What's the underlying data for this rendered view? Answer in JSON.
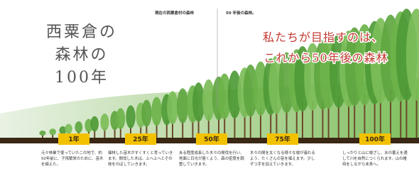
{
  "title_lines": [
    "西粟倉の",
    "森林の",
    "100年"
  ],
  "labels": {
    "current": "現在の西粟倉村の森林",
    "future": "50 年後の森林。"
  },
  "goal_lines": [
    "私たちが目指すのは、",
    "これから50年後の森林"
  ],
  "timeline": [
    {
      "year": "1年",
      "text": "元々林業で使っていたこの地で、約50年前に、子孫繁栄のために、苗木を植えた。"
    },
    {
      "year": "25年",
      "text": "植林した苗木がすくすくと育っていきます。間伐した木は、上へ上へとその枝をのばしていきます。"
    },
    {
      "year": "50年",
      "text": "ある程度成長した木々の間伐を行い、地面に日光が届くよう、森の密度を調整していきます。"
    },
    {
      "year": "75年",
      "text": "木々の間を太くなる様々な根が張れるよう、たくさんの苗を植えます。少しずつ手を加えていきます。"
    },
    {
      "year": "100年",
      "text": "しっかりと山に根ざし、水の蓄えを通して川を自然につくられます。山の維持をしながら未来へ。"
    }
  ]
}
